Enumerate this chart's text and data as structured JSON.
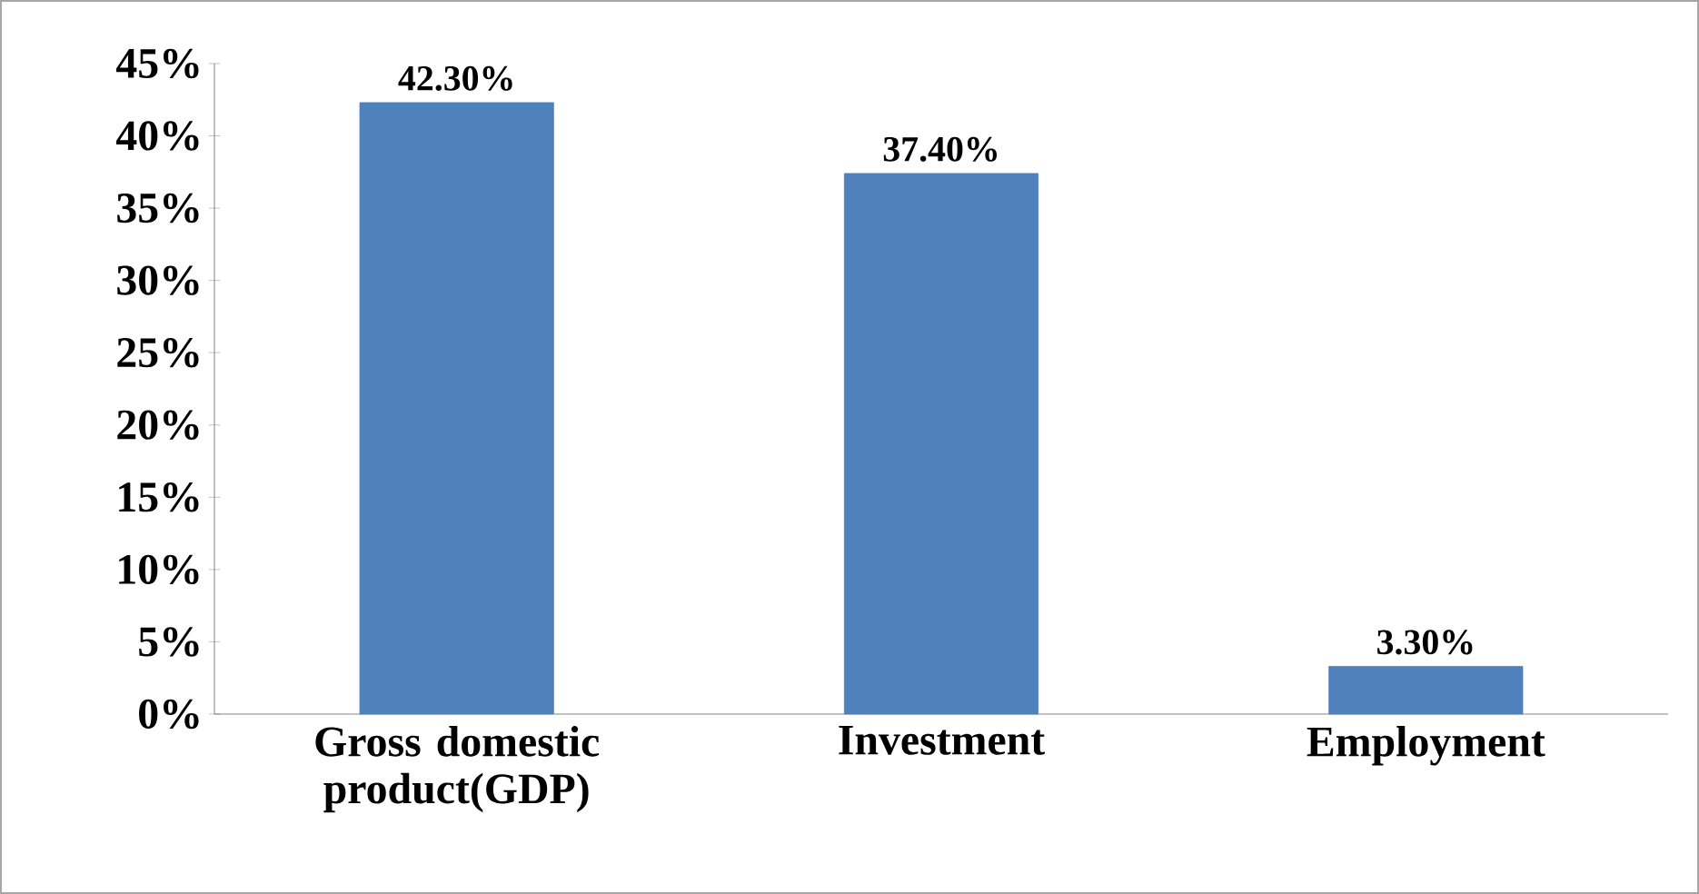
{
  "chart_data": {
    "type": "bar",
    "categories": [
      "Gross domestic product(GDP)",
      "Investment",
      "Employment"
    ],
    "values": [
      42.3,
      37.4,
      3.3
    ],
    "value_labels": [
      "42.30%",
      "37.40%",
      "3.30%"
    ],
    "color": "#4f81bd",
    "ylim": [
      0,
      45
    ],
    "yticks": [
      {
        "value": 0,
        "label": "0%"
      },
      {
        "value": 5,
        "label": "5%"
      },
      {
        "value": 10,
        "label": "10%"
      },
      {
        "value": 15,
        "label": "15%"
      },
      {
        "value": 20,
        "label": "20%"
      },
      {
        "value": 25,
        "label": "25%"
      },
      {
        "value": 30,
        "label": "30%"
      },
      {
        "value": 35,
        "label": "35%"
      },
      {
        "value": 40,
        "label": "40%"
      },
      {
        "value": 45,
        "label": "45%"
      }
    ]
  }
}
